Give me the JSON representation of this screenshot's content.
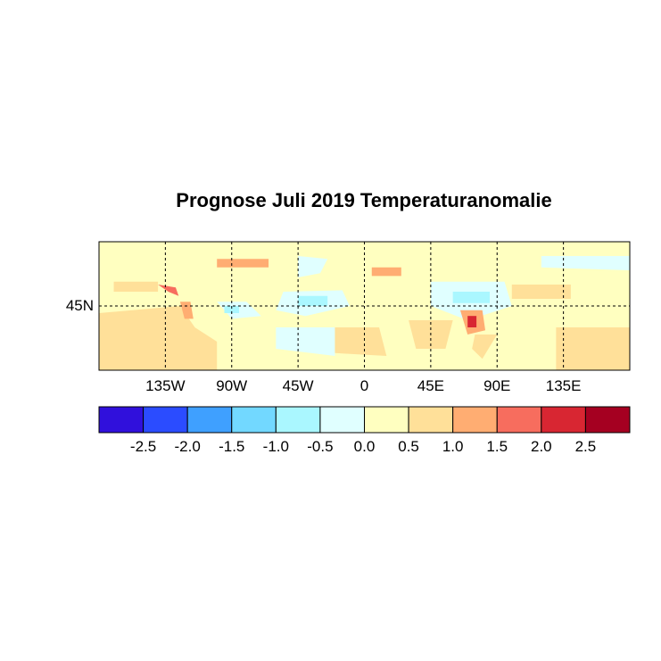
{
  "title": "Prognose Juli 2019 Temperaturanomalie",
  "map": {
    "lon_range": [
      -180,
      180
    ],
    "lat_range": [
      0,
      90
    ],
    "background_color": "#ffffc0",
    "lat_labels": [
      {
        "lat": 45,
        "label": "45N"
      }
    ],
    "lon_labels": [
      {
        "lon": -135,
        "label": "135W"
      },
      {
        "lon": -90,
        "label": "90W"
      },
      {
        "lon": -45,
        "label": "45W"
      },
      {
        "lon": 0,
        "label": "0"
      },
      {
        "lon": 45,
        "label": "45E"
      },
      {
        "lon": 90,
        "label": "90E"
      },
      {
        "lon": 135,
        "label": "135E"
      }
    ],
    "gridlines": "dashed",
    "anomaly_patches": [
      {
        "level": 0.75,
        "poly": [
          [
            -180,
            40
          ],
          [
            -125,
            45
          ],
          [
            -115,
            30
          ],
          [
            -100,
            20
          ],
          [
            -100,
            0
          ],
          [
            -180,
            0
          ]
        ]
      },
      {
        "level": 0.75,
        "poly": [
          [
            -170,
            62
          ],
          [
            -140,
            62
          ],
          [
            -140,
            55
          ],
          [
            -170,
            55
          ]
        ]
      },
      {
        "level": 1.75,
        "poly": [
          [
            -140,
            60
          ],
          [
            -128,
            58
          ],
          [
            -126,
            52
          ],
          [
            -133,
            55
          ]
        ]
      },
      {
        "level": 1.25,
        "poly": [
          [
            -125,
            48
          ],
          [
            -118,
            48
          ],
          [
            -116,
            36
          ],
          [
            -122,
            36
          ]
        ]
      },
      {
        "level": -0.25,
        "poly": [
          [
            -100,
            48
          ],
          [
            -80,
            48
          ],
          [
            -70,
            38
          ],
          [
            -90,
            36
          ]
        ]
      },
      {
        "level": -0.75,
        "poly": [
          [
            -95,
            45
          ],
          [
            -85,
            45
          ],
          [
            -85,
            40
          ],
          [
            -95,
            40
          ]
        ]
      },
      {
        "level": -0.25,
        "poly": [
          [
            -55,
            55
          ],
          [
            -15,
            56
          ],
          [
            -10,
            45
          ],
          [
            -40,
            38
          ],
          [
            -60,
            42
          ]
        ]
      },
      {
        "level": -0.75,
        "poly": [
          [
            -45,
            52
          ],
          [
            -25,
            52
          ],
          [
            -25,
            45
          ],
          [
            -45,
            45
          ]
        ]
      },
      {
        "level": -0.25,
        "poly": [
          [
            -60,
            30
          ],
          [
            -20,
            30
          ],
          [
            -20,
            10
          ],
          [
            -60,
            15
          ]
        ]
      },
      {
        "level": -0.25,
        "poly": [
          [
            -45,
            80
          ],
          [
            -25,
            78
          ],
          [
            -30,
            68
          ],
          [
            -45,
            65
          ]
        ]
      },
      {
        "level": 0.75,
        "poly": [
          [
            -20,
            30
          ],
          [
            10,
            30
          ],
          [
            15,
            10
          ],
          [
            -20,
            12
          ]
        ]
      },
      {
        "level": 0.75,
        "poly": [
          [
            30,
            35
          ],
          [
            60,
            35
          ],
          [
            55,
            15
          ],
          [
            35,
            15
          ]
        ]
      },
      {
        "level": -0.25,
        "poly": [
          [
            45,
            62
          ],
          [
            95,
            62
          ],
          [
            100,
            45
          ],
          [
            70,
            35
          ],
          [
            45,
            45
          ]
        ]
      },
      {
        "level": -0.75,
        "poly": [
          [
            60,
            55
          ],
          [
            85,
            55
          ],
          [
            85,
            47
          ],
          [
            60,
            47
          ]
        ]
      },
      {
        "level": 1.25,
        "poly": [
          [
            65,
            42
          ],
          [
            80,
            42
          ],
          [
            82,
            28
          ],
          [
            70,
            25
          ]
        ]
      },
      {
        "level": 2.25,
        "poly": [
          [
            70,
            38
          ],
          [
            76,
            38
          ],
          [
            76,
            30
          ],
          [
            70,
            30
          ]
        ]
      },
      {
        "level": 0.75,
        "poly": [
          [
            75,
            25
          ],
          [
            90,
            25
          ],
          [
            80,
            8
          ],
          [
            73,
            15
          ]
        ]
      },
      {
        "level": 0.75,
        "poly": [
          [
            100,
            60
          ],
          [
            140,
            60
          ],
          [
            140,
            50
          ],
          [
            100,
            50
          ]
        ]
      },
      {
        "level": 1.25,
        "poly": [
          [
            5,
            72
          ],
          [
            25,
            72
          ],
          [
            25,
            66
          ],
          [
            5,
            66
          ]
        ]
      },
      {
        "level": 1.25,
        "poly": [
          [
            -100,
            78
          ],
          [
            -65,
            78
          ],
          [
            -65,
            72
          ],
          [
            -100,
            72
          ]
        ]
      },
      {
        "level": -0.25,
        "poly": [
          [
            120,
            80
          ],
          [
            180,
            80
          ],
          [
            180,
            70
          ],
          [
            120,
            72
          ]
        ]
      },
      {
        "level": 0.75,
        "poly": [
          [
            130,
            30
          ],
          [
            180,
            30
          ],
          [
            180,
            0
          ],
          [
            130,
            0
          ]
        ]
      }
    ]
  },
  "colorbar": {
    "colors": [
      "#3010dc",
      "#2b4cff",
      "#3fa0ff",
      "#72d8ff",
      "#aaf7ff",
      "#e0ffff",
      "#ffffc0",
      "#ffe099",
      "#ffad72",
      "#f76d5e",
      "#d82632",
      "#a50021"
    ],
    "labels": [
      "-2.5",
      "-2.0",
      "-1.5",
      "-1.0",
      "-0.5",
      "0.0",
      "0.5",
      "1.0",
      "1.5",
      "2.0",
      "2.5"
    ]
  }
}
